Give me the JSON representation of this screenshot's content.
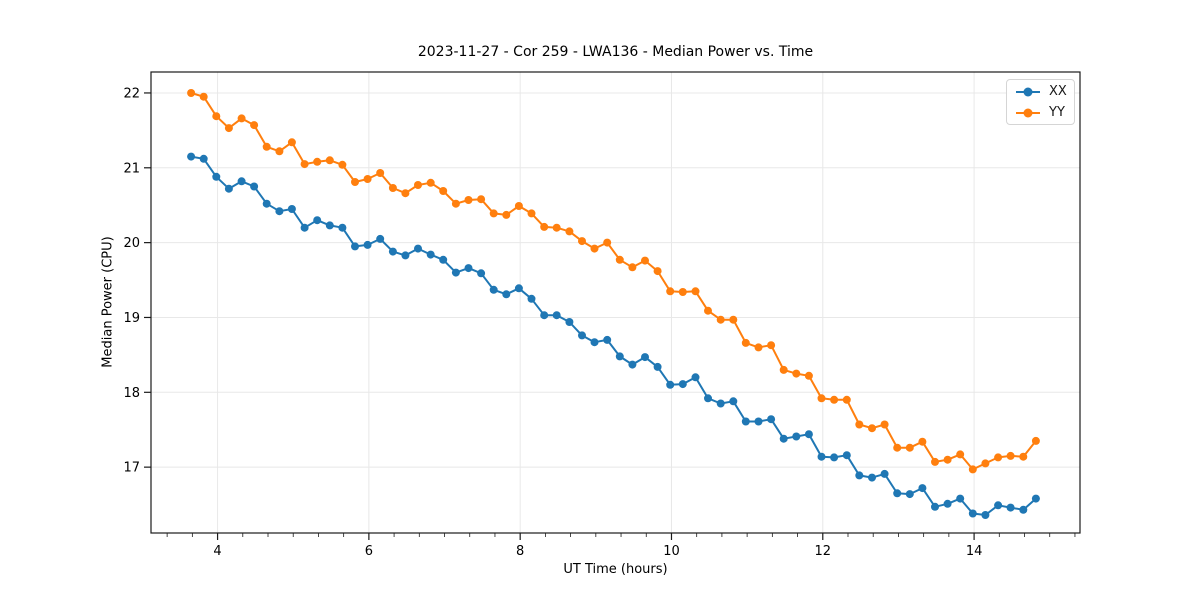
{
  "figure": {
    "background": "#ffffff"
  },
  "chart_data": {
    "type": "line",
    "title": "2023-11-27 - Cor 259 - LWA136 - Median Power vs. Time",
    "xlabel": "UT Time (hours)",
    "ylabel": "Median Power (CPU)",
    "xlim": [
      3.12,
      15.4
    ],
    "ylim": [
      16.12,
      22.28
    ],
    "xticks": [
      4,
      6,
      8,
      10,
      12,
      14
    ],
    "yticks": [
      17,
      18,
      19,
      20,
      21,
      22
    ],
    "x_minor_tick_step": 0.33333,
    "grid": true,
    "legend_position": "upper right",
    "x": [
      3.65,
      3.817,
      3.983,
      4.15,
      4.317,
      4.483,
      4.65,
      4.817,
      4.983,
      5.15,
      5.317,
      5.483,
      5.65,
      5.817,
      5.983,
      6.15,
      6.317,
      6.483,
      6.65,
      6.817,
      6.983,
      7.15,
      7.317,
      7.483,
      7.65,
      7.817,
      7.983,
      8.15,
      8.317,
      8.483,
      8.65,
      8.817,
      8.983,
      9.15,
      9.317,
      9.483,
      9.65,
      9.817,
      9.983,
      10.15,
      10.317,
      10.483,
      10.65,
      10.817,
      10.983,
      11.15,
      11.317,
      11.483,
      11.65,
      11.817,
      11.983,
      12.15,
      12.317,
      12.483,
      12.65,
      12.817,
      12.983,
      13.15,
      13.317,
      13.483,
      13.65,
      13.817,
      13.983,
      14.15,
      14.317,
      14.483,
      14.65,
      14.817
    ],
    "series": [
      {
        "name": "XX",
        "color": "#1f77b4",
        "values": [
          21.15,
          21.12,
          20.88,
          20.72,
          20.82,
          20.75,
          20.52,
          20.42,
          20.45,
          20.2,
          20.3,
          20.23,
          20.2,
          19.95,
          19.97,
          20.05,
          19.88,
          19.83,
          19.92,
          19.84,
          19.77,
          19.6,
          19.66,
          19.59,
          19.37,
          19.31,
          19.39,
          19.25,
          19.03,
          19.03,
          18.94,
          18.76,
          18.67,
          18.7,
          18.48,
          18.37,
          18.47,
          18.34,
          18.1,
          18.11,
          18.2,
          17.92,
          17.85,
          17.88,
          17.61,
          17.61,
          17.64,
          17.38,
          17.41,
          17.44,
          17.14,
          17.13,
          17.16,
          16.89,
          16.86,
          16.91,
          16.65,
          16.64,
          16.72,
          16.47,
          16.51,
          16.58,
          16.38,
          16.36,
          16.49,
          16.46,
          16.43,
          16.58
        ]
      },
      {
        "name": "YY",
        "color": "#ff7f0e",
        "values": [
          22.0,
          21.95,
          21.69,
          21.53,
          21.66,
          21.57,
          21.28,
          21.22,
          21.34,
          21.05,
          21.08,
          21.1,
          21.04,
          20.81,
          20.85,
          20.93,
          20.73,
          20.66,
          20.77,
          20.8,
          20.69,
          20.52,
          20.57,
          20.58,
          20.39,
          20.37,
          20.49,
          20.39,
          20.21,
          20.2,
          20.15,
          20.02,
          19.92,
          20.0,
          19.77,
          19.67,
          19.76,
          19.62,
          19.35,
          19.34,
          19.35,
          19.09,
          18.97,
          18.97,
          18.66,
          18.6,
          18.63,
          18.3,
          18.25,
          18.22,
          17.92,
          17.9,
          17.9,
          17.57,
          17.52,
          17.57,
          17.26,
          17.26,
          17.34,
          17.07,
          17.1,
          17.17,
          16.97,
          17.05,
          17.13,
          17.15,
          17.14,
          17.35
        ]
      }
    ],
    "style": {
      "grid_color": "#e8e8e8",
      "spine_color": "#1a1a1a",
      "tick_color": "#1a1a1a",
      "tick_label_color": "#000000",
      "line_width": 2,
      "marker_radius": 4
    }
  }
}
